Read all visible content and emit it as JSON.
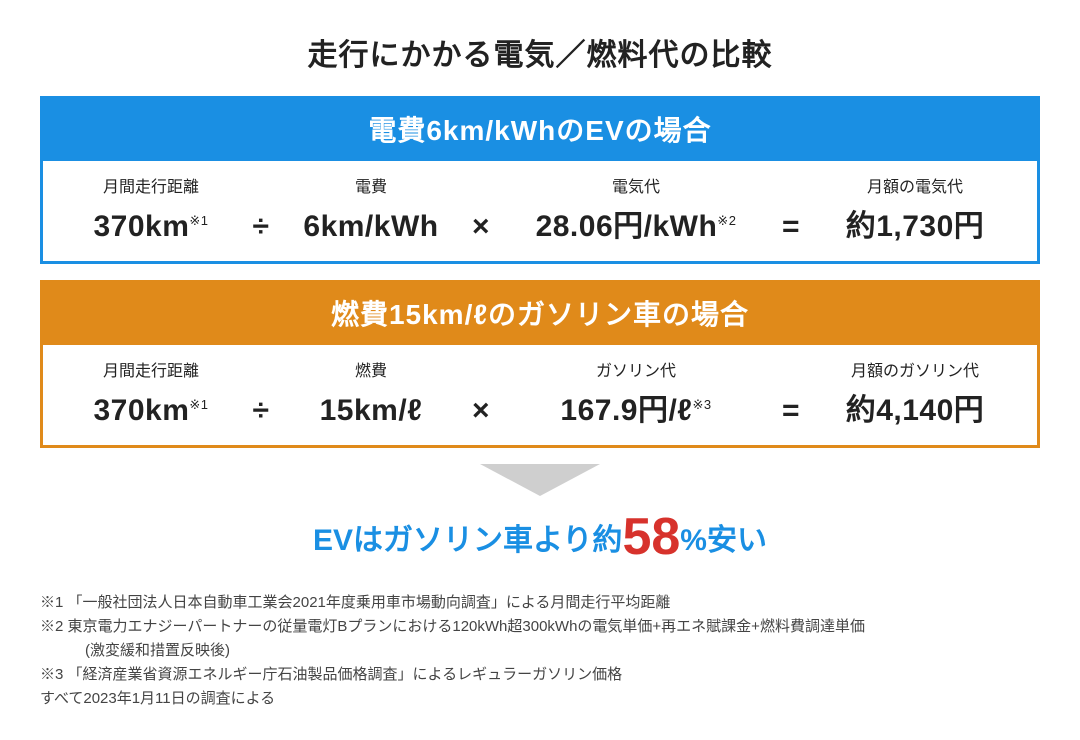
{
  "title": "走行にかかる電気／燃料代の比較",
  "colors": {
    "ev_border": "#1a8fe3",
    "ev_header_bg": "#1a8fe3",
    "gas_border": "#e08a1a",
    "gas_header_bg": "#e08a1a",
    "arrow": "#cfcfcf",
    "blue_text": "#1a8fe3",
    "red_text": "#d7322c",
    "body_text": "#222222",
    "notes_text": "#444444",
    "background": "#ffffff"
  },
  "ev": {
    "header": "電費6km/kWhのEVの場合",
    "labels": {
      "distance": "月間走行距離",
      "efficiency": "電費",
      "unit_price": "電気代",
      "total": "月額の電気代"
    },
    "values": {
      "distance": "370km",
      "distance_note": "※1",
      "op1": "÷",
      "efficiency": "6km/kWh",
      "op2": "×",
      "unit_price": "28.06円/kWh",
      "unit_price_note": "※2",
      "op3": "=",
      "total": "約1,730円"
    }
  },
  "gas": {
    "header": "燃費15km/ℓのガソリン車の場合",
    "labels": {
      "distance": "月間走行距離",
      "efficiency": "燃費",
      "unit_price": "ガソリン代",
      "total": "月額のガソリン代"
    },
    "values": {
      "distance": "370km",
      "distance_note": "※1",
      "op1": "÷",
      "efficiency": "15km/ℓ",
      "op2": "×",
      "unit_price": "167.9円/ℓ",
      "unit_price_note": "※3",
      "op3": "=",
      "total": "約4,140円"
    }
  },
  "conclusion": {
    "prefix": "EVはガソリン車より約",
    "percent": "58",
    "suffix": "%安い"
  },
  "notes": {
    "n1": "※1 「一般社団法人日本自動車工業会2021年度乗用車市場動向調査」による月間走行平均距離",
    "n2": "※2 東京電力エナジーパートナーの従量電灯Bプランにおける120kWh超300kWhの電気単価+再エネ賦課金+燃料費調達単価",
    "n2b": "(激変緩和措置反映後)",
    "n3": "※3 「経済産業省資源エネルギー庁石油製品価格調査」によるレギュラーガソリン価格",
    "date": "すべて2023年1月11日の調査による"
  }
}
